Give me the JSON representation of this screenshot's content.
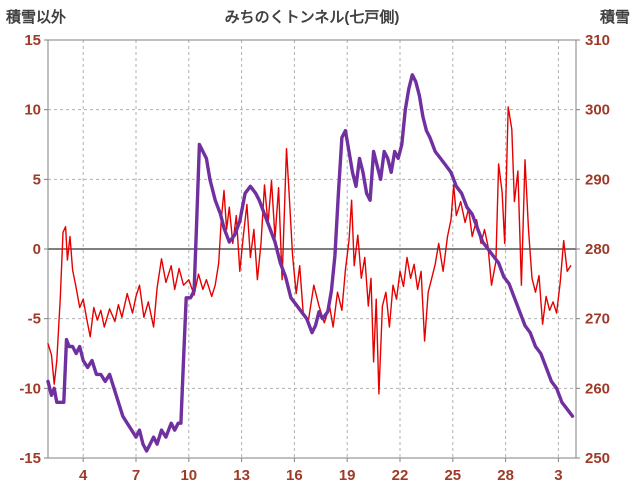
{
  "header": {
    "left_axis_title": "積雪以外",
    "title": "みちのくトンネル(七戸側)",
    "right_axis_title": "積雪"
  },
  "colors": {
    "red_series": "#e60000",
    "purple_series": "#7030a0",
    "tick_label": "#9e3a28",
    "grid": "#b0b0b0",
    "zero_line": "#7f7f7f",
    "frame": "#808080",
    "title_text": "#404040"
  },
  "chart_data": {
    "type": "line",
    "title": "みちのくトンネル(七戸側)",
    "legend": "none",
    "grid": true,
    "left_axis": {
      "label": "積雪以外",
      "min": -15,
      "max": 15,
      "ticks": [
        15,
        10,
        5,
        0,
        -5,
        -10,
        -15
      ]
    },
    "right_axis": {
      "label": "積雪",
      "min": 250,
      "max": 310,
      "ticks": [
        310,
        300,
        290,
        280,
        270,
        260,
        250
      ]
    },
    "x_axis": {
      "tick_labels": [
        "4",
        "7",
        "10",
        "13",
        "16",
        "19",
        "22",
        "25",
        "28",
        "3"
      ],
      "tick_days": [
        4,
        7,
        10,
        13,
        16,
        19,
        22,
        25,
        28,
        31
      ],
      "range": [
        2,
        32
      ]
    },
    "series": [
      {
        "name": "積雪以外",
        "axis": "left",
        "color": "#e60000",
        "stroke_width": 1.4,
        "points": [
          [
            2.0,
            -6.8
          ],
          [
            2.2,
            -7.6
          ],
          [
            2.35,
            -9.7
          ],
          [
            2.5,
            -8.0
          ],
          [
            2.7,
            -3.5
          ],
          [
            2.85,
            1.2
          ],
          [
            3.0,
            1.6
          ],
          [
            3.1,
            -0.8
          ],
          [
            3.25,
            0.9
          ],
          [
            3.4,
            -1.5
          ],
          [
            3.6,
            -2.8
          ],
          [
            3.8,
            -4.2
          ],
          [
            4.0,
            -3.6
          ],
          [
            4.2,
            -5.0
          ],
          [
            4.4,
            -6.3
          ],
          [
            4.6,
            -4.2
          ],
          [
            4.8,
            -5.1
          ],
          [
            5.0,
            -4.4
          ],
          [
            5.2,
            -5.6
          ],
          [
            5.5,
            -4.3
          ],
          [
            5.8,
            -5.2
          ],
          [
            6.0,
            -4.0
          ],
          [
            6.2,
            -4.9
          ],
          [
            6.5,
            -3.2
          ],
          [
            6.8,
            -4.6
          ],
          [
            7.0,
            -3.4
          ],
          [
            7.2,
            -2.6
          ],
          [
            7.45,
            -4.9
          ],
          [
            7.7,
            -3.8
          ],
          [
            8.0,
            -5.6
          ],
          [
            8.2,
            -2.8
          ],
          [
            8.45,
            -0.7
          ],
          [
            8.7,
            -2.4
          ],
          [
            9.0,
            -1.2
          ],
          [
            9.2,
            -2.9
          ],
          [
            9.45,
            -1.4
          ],
          [
            9.7,
            -2.6
          ],
          [
            10.0,
            -2.2
          ],
          [
            10.3,
            -3.3
          ],
          [
            10.55,
            -1.8
          ],
          [
            10.8,
            -2.9
          ],
          [
            11.0,
            -2.2
          ],
          [
            11.3,
            -3.4
          ],
          [
            11.5,
            -2.6
          ],
          [
            11.7,
            -1.0
          ],
          [
            11.85,
            2.2
          ],
          [
            12.0,
            4.2
          ],
          [
            12.15,
            1.4
          ],
          [
            12.3,
            3.0
          ],
          [
            12.5,
            0.4
          ],
          [
            12.7,
            2.4
          ],
          [
            12.9,
            -1.6
          ],
          [
            13.1,
            1.0
          ],
          [
            13.3,
            3.2
          ],
          [
            13.5,
            -0.6
          ],
          [
            13.7,
            1.4
          ],
          [
            13.9,
            -2.2
          ],
          [
            14.1,
            0.4
          ],
          [
            14.3,
            4.6
          ],
          [
            14.5,
            1.8
          ],
          [
            14.7,
            4.9
          ],
          [
            14.9,
            0.8
          ],
          [
            15.1,
            4.4
          ],
          [
            15.3,
            -2.2
          ],
          [
            15.55,
            7.2
          ],
          [
            15.7,
            4.0
          ],
          [
            15.9,
            -0.5
          ],
          [
            16.1,
            -3.2
          ],
          [
            16.3,
            -1.2
          ],
          [
            16.5,
            -4.6
          ],
          [
            16.8,
            -5.1
          ],
          [
            17.1,
            -2.6
          ],
          [
            17.4,
            -4.1
          ],
          [
            17.7,
            -5.3
          ],
          [
            18.0,
            -4.1
          ],
          [
            18.2,
            -5.6
          ],
          [
            18.45,
            -3.1
          ],
          [
            18.7,
            -4.4
          ],
          [
            18.9,
            -1.5
          ],
          [
            19.1,
            0.6
          ],
          [
            19.25,
            3.5
          ],
          [
            19.4,
            -1.2
          ],
          [
            19.6,
            1.0
          ],
          [
            19.8,
            -2.1
          ],
          [
            20.0,
            -0.6
          ],
          [
            20.2,
            -4.1
          ],
          [
            20.35,
            -2.1
          ],
          [
            20.5,
            -8.1
          ],
          [
            20.65,
            -3.6
          ],
          [
            20.8,
            -10.4
          ],
          [
            21.0,
            -4.1
          ],
          [
            21.2,
            -3.1
          ],
          [
            21.4,
            -5.6
          ],
          [
            21.6,
            -2.6
          ],
          [
            21.8,
            -3.6
          ],
          [
            22.0,
            -1.6
          ],
          [
            22.2,
            -2.7
          ],
          [
            22.4,
            -0.6
          ],
          [
            22.6,
            -2.1
          ],
          [
            22.8,
            -1.1
          ],
          [
            23.0,
            -2.9
          ],
          [
            23.2,
            -1.6
          ],
          [
            23.4,
            -6.6
          ],
          [
            23.6,
            -3.1
          ],
          [
            23.8,
            -2.1
          ],
          [
            24.0,
            -1.1
          ],
          [
            24.2,
            0.4
          ],
          [
            24.45,
            -1.6
          ],
          [
            24.7,
            0.9
          ],
          [
            24.9,
            2.1
          ],
          [
            25.05,
            4.6
          ],
          [
            25.2,
            2.4
          ],
          [
            25.45,
            3.4
          ],
          [
            25.7,
            1.9
          ],
          [
            25.9,
            2.9
          ],
          [
            26.1,
            0.9
          ],
          [
            26.35,
            2.1
          ],
          [
            26.6,
            0.4
          ],
          [
            26.8,
            1.4
          ],
          [
            27.0,
            0.2
          ],
          [
            27.2,
            -2.6
          ],
          [
            27.45,
            -0.9
          ],
          [
            27.6,
            6.1
          ],
          [
            27.8,
            4.1
          ],
          [
            27.95,
            0.4
          ],
          [
            28.15,
            10.2
          ],
          [
            28.35,
            8.6
          ],
          [
            28.5,
            3.4
          ],
          [
            28.7,
            5.6
          ],
          [
            28.9,
            -2.6
          ],
          [
            29.1,
            6.4
          ],
          [
            29.3,
            1.4
          ],
          [
            29.5,
            -2.1
          ],
          [
            29.7,
            -3.1
          ],
          [
            29.9,
            -1.9
          ],
          [
            30.1,
            -5.4
          ],
          [
            30.3,
            -3.4
          ],
          [
            30.5,
            -4.4
          ],
          [
            30.7,
            -3.8
          ],
          [
            30.9,
            -4.6
          ],
          [
            31.1,
            -2.4
          ],
          [
            31.3,
            0.6
          ],
          [
            31.5,
            -1.6
          ],
          [
            31.7,
            -1.2
          ]
        ]
      },
      {
        "name": "積雪",
        "axis": "right",
        "color": "#7030a0",
        "stroke_width": 3.4,
        "points": [
          [
            2.0,
            261
          ],
          [
            2.2,
            259
          ],
          [
            2.35,
            260
          ],
          [
            2.5,
            258
          ],
          [
            2.7,
            258
          ],
          [
            2.9,
            258
          ],
          [
            3.05,
            267
          ],
          [
            3.2,
            266
          ],
          [
            3.4,
            266
          ],
          [
            3.6,
            265
          ],
          [
            3.8,
            266
          ],
          [
            4.0,
            264
          ],
          [
            4.25,
            263
          ],
          [
            4.5,
            264
          ],
          [
            4.75,
            262
          ],
          [
            5.0,
            262
          ],
          [
            5.25,
            261
          ],
          [
            5.5,
            262
          ],
          [
            5.75,
            260
          ],
          [
            6.0,
            258
          ],
          [
            6.25,
            256
          ],
          [
            6.5,
            255
          ],
          [
            6.75,
            254
          ],
          [
            7.0,
            253
          ],
          [
            7.2,
            254
          ],
          [
            7.4,
            252
          ],
          [
            7.6,
            251
          ],
          [
            7.8,
            252
          ],
          [
            8.0,
            253
          ],
          [
            8.2,
            252
          ],
          [
            8.45,
            254
          ],
          [
            8.7,
            253
          ],
          [
            9.0,
            255
          ],
          [
            9.2,
            254
          ],
          [
            9.4,
            255
          ],
          [
            9.55,
            255
          ],
          [
            9.7,
            264
          ],
          [
            9.85,
            273
          ],
          [
            10.1,
            273
          ],
          [
            10.3,
            274
          ],
          [
            10.45,
            284
          ],
          [
            10.6,
            295
          ],
          [
            10.8,
            294
          ],
          [
            11.0,
            293
          ],
          [
            11.2,
            290
          ],
          [
            11.5,
            287
          ],
          [
            11.8,
            285
          ],
          [
            12.0,
            283
          ],
          [
            12.3,
            281
          ],
          [
            12.6,
            282
          ],
          [
            12.9,
            284
          ],
          [
            13.2,
            288
          ],
          [
            13.5,
            289
          ],
          [
            13.8,
            288
          ],
          [
            14.0,
            287
          ],
          [
            14.3,
            285
          ],
          [
            14.6,
            283
          ],
          [
            14.9,
            281
          ],
          [
            15.2,
            278
          ],
          [
            15.5,
            276
          ],
          [
            15.8,
            273
          ],
          [
            16.1,
            272
          ],
          [
            16.4,
            271
          ],
          [
            16.7,
            270
          ],
          [
            17.0,
            268
          ],
          [
            17.2,
            269
          ],
          [
            17.4,
            271
          ],
          [
            17.6,
            270
          ],
          [
            17.9,
            271
          ],
          [
            18.1,
            274
          ],
          [
            18.3,
            279
          ],
          [
            18.5,
            288
          ],
          [
            18.7,
            296
          ],
          [
            18.9,
            297
          ],
          [
            19.1,
            294
          ],
          [
            19.3,
            291
          ],
          [
            19.5,
            289
          ],
          [
            19.7,
            293
          ],
          [
            19.9,
            291
          ],
          [
            20.1,
            288
          ],
          [
            20.3,
            287
          ],
          [
            20.5,
            294
          ],
          [
            20.7,
            292
          ],
          [
            20.9,
            290
          ],
          [
            21.1,
            294
          ],
          [
            21.3,
            293
          ],
          [
            21.5,
            291
          ],
          [
            21.7,
            294
          ],
          [
            21.9,
            293
          ],
          [
            22.1,
            295
          ],
          [
            22.3,
            300
          ],
          [
            22.5,
            303
          ],
          [
            22.7,
            305
          ],
          [
            22.9,
            304
          ],
          [
            23.1,
            302
          ],
          [
            23.3,
            299
          ],
          [
            23.5,
            297
          ],
          [
            23.7,
            296
          ],
          [
            24.0,
            294
          ],
          [
            24.3,
            293
          ],
          [
            24.6,
            292
          ],
          [
            24.9,
            291
          ],
          [
            25.2,
            289
          ],
          [
            25.5,
            288
          ],
          [
            25.8,
            286
          ],
          [
            26.1,
            285
          ],
          [
            26.4,
            283
          ],
          [
            26.7,
            281
          ],
          [
            27.0,
            280
          ],
          [
            27.3,
            279
          ],
          [
            27.6,
            278
          ],
          [
            27.9,
            276
          ],
          [
            28.2,
            275
          ],
          [
            28.5,
            273
          ],
          [
            28.8,
            271
          ],
          [
            29.1,
            269
          ],
          [
            29.4,
            268
          ],
          [
            29.7,
            266
          ],
          [
            30.0,
            265
          ],
          [
            30.3,
            263
          ],
          [
            30.6,
            261
          ],
          [
            30.9,
            260
          ],
          [
            31.2,
            258
          ],
          [
            31.5,
            257
          ],
          [
            31.8,
            256
          ]
        ]
      }
    ]
  }
}
